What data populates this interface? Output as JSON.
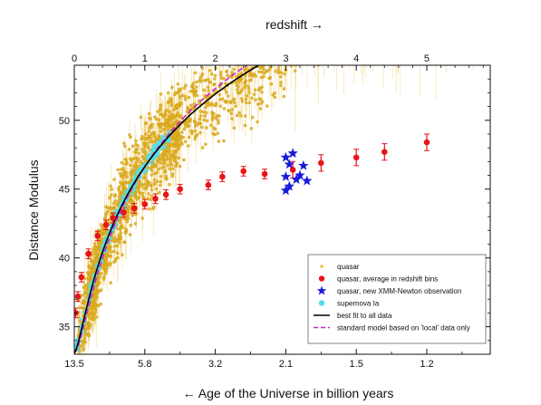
{
  "chart_data": {
    "type": "scatter",
    "title": "",
    "top_axis": {
      "label": "redshift →",
      "ticks": [
        0,
        1,
        2,
        3,
        4,
        5
      ],
      "range": [
        0,
        5.9
      ]
    },
    "bottom_axis": {
      "label": "←  Age of the Universe in billion years",
      "tick_labels": [
        {
          "z": 0,
          "label": "13.5"
        },
        {
          "z": 1,
          "label": "5.8"
        },
        {
          "z": 2,
          "label": "3.2"
        },
        {
          "z": 3,
          "label": "2.1"
        },
        {
          "z": 4,
          "label": "1.5"
        },
        {
          "z": 5,
          "label": "1.2"
        }
      ]
    },
    "y_axis": {
      "label": "Distance Modulus",
      "ticks": [
        35,
        40,
        45,
        50
      ],
      "range": [
        33,
        54
      ]
    },
    "grid": false,
    "legend_position": "bottom-right",
    "series": [
      {
        "name": "quasar",
        "style": "small-dots-with-errorbars",
        "color": "#e6b422"
      },
      {
        "name": "quasar, average in redshift bins",
        "style": "circles-with-errorbars",
        "color": "#e8141a",
        "points": [
          [
            0.02,
            36.0
          ],
          [
            0.05,
            37.2
          ],
          [
            0.1,
            38.6
          ],
          [
            0.2,
            40.3
          ],
          [
            0.33,
            41.6
          ],
          [
            0.45,
            42.4
          ],
          [
            0.55,
            42.9
          ],
          [
            0.7,
            43.3
          ],
          [
            0.85,
            43.6
          ],
          [
            1.0,
            43.9
          ],
          [
            1.15,
            44.3
          ],
          [
            1.3,
            44.6
          ],
          [
            1.5,
            45.0
          ],
          [
            1.9,
            45.3
          ],
          [
            2.1,
            45.9
          ],
          [
            2.4,
            46.3
          ],
          [
            2.7,
            46.1
          ],
          [
            3.1,
            46.4
          ],
          [
            3.5,
            46.9
          ],
          [
            4.0,
            47.3
          ],
          [
            4.4,
            47.7
          ],
          [
            5.0,
            48.4
          ]
        ]
      },
      {
        "name": "quasar, new XMM-Newton observation",
        "style": "stars",
        "color": "#1a1adc",
        "points": [
          [
            3.0,
            47.3
          ],
          [
            3.1,
            47.6
          ],
          [
            3.05,
            46.8
          ],
          [
            3.25,
            46.7
          ],
          [
            3.0,
            45.9
          ],
          [
            3.15,
            45.7
          ],
          [
            3.3,
            45.6
          ],
          [
            3.0,
            44.9
          ],
          [
            3.05,
            45.2
          ],
          [
            3.2,
            46.0
          ]
        ]
      },
      {
        "name": "supernova Ia",
        "style": "circles",
        "color": "#55dde8"
      },
      {
        "name": "best fit to all data",
        "style": "solid-line",
        "color": "#000000",
        "coefficients": {
          "a": 33.1,
          "b": 12.3,
          "c": 11.6,
          "p": 1.5
        }
      },
      {
        "name": "standard model based on 'local' data only",
        "style": "dashed-line",
        "color": "#cc22cc",
        "coefficients": {
          "a": 33.1,
          "b": 12.25,
          "c": 11.7,
          "p": 1.62
        }
      }
    ]
  },
  "colors": {
    "quasar": "#e6b422",
    "quasar_avg": "#e8141a",
    "xmm": "#1a1adc",
    "sn": "#55dde8",
    "bestfit": "#000000",
    "standard": "#cc22cc"
  }
}
